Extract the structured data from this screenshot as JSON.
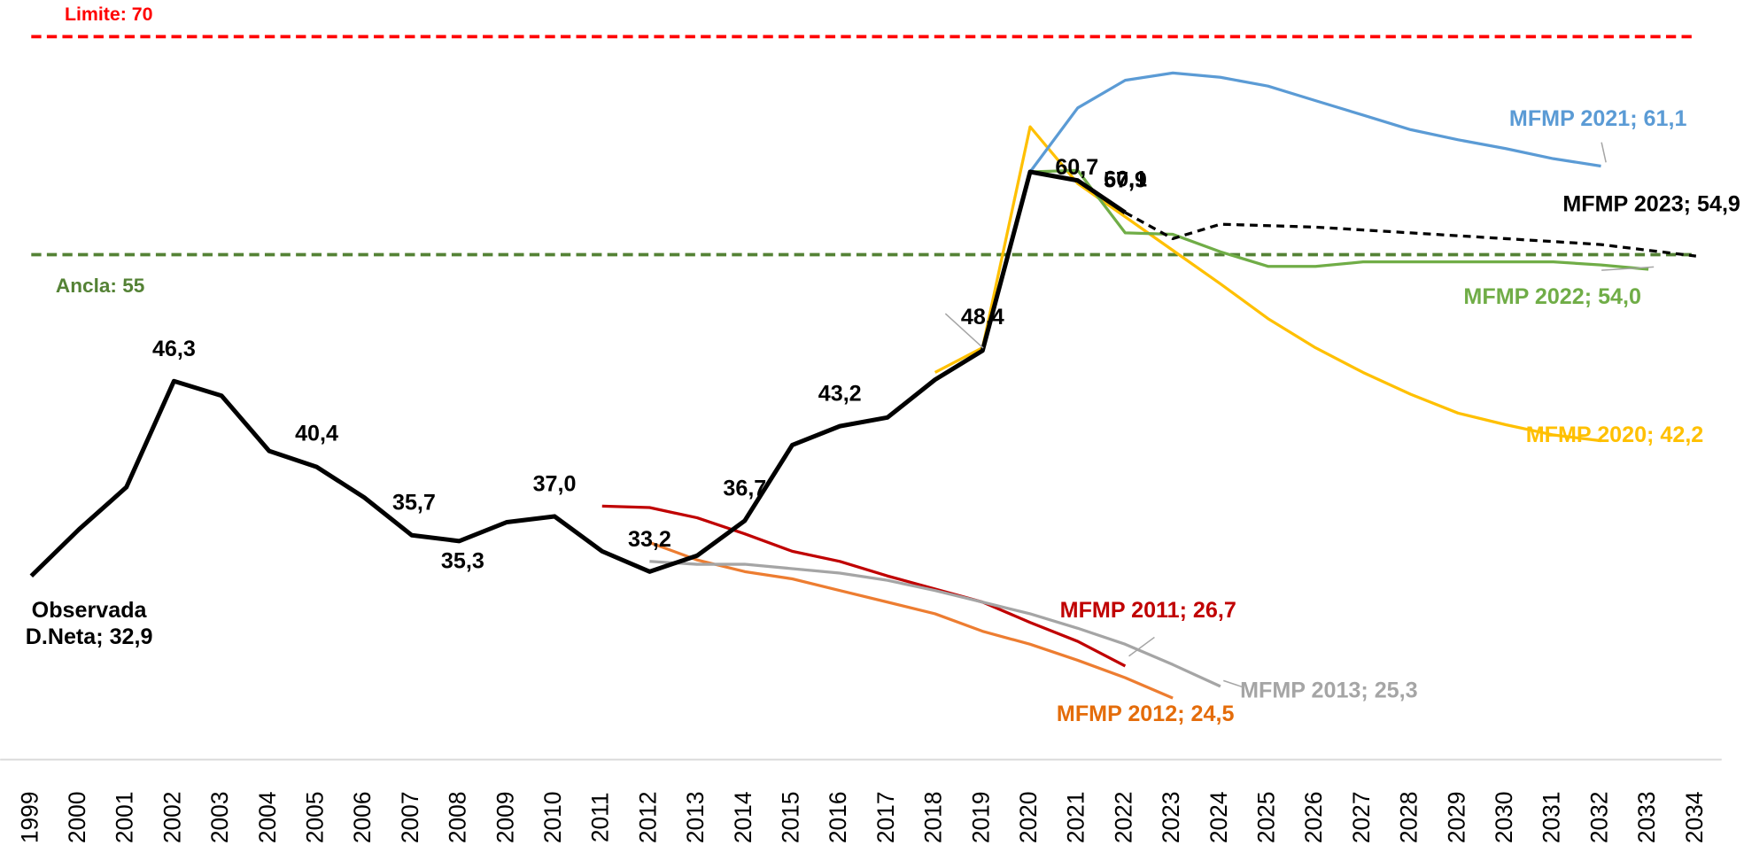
{
  "chart_data": {
    "type": "line",
    "categories": [
      "1999",
      "2000",
      "2001",
      "2002",
      "2003",
      "2004",
      "2005",
      "2006",
      "2007",
      "2008",
      "2009",
      "2010",
      "2011",
      "2012",
      "2013",
      "2014",
      "2015",
      "2016",
      "2017",
      "2018",
      "2019",
      "2020",
      "2021",
      "2022",
      "2023",
      "2024",
      "2025",
      "2026",
      "2027",
      "2028",
      "2029",
      "2030",
      "2031",
      "2032",
      "2033",
      "2034"
    ],
    "ylim": [
      20,
      72
    ],
    "reference_lines": [
      {
        "label": "Limite: 70",
        "value": 70,
        "color": "#ff0000"
      },
      {
        "label": "Ancla: 55",
        "value": 55,
        "color": "#548235"
      }
    ],
    "series": [
      {
        "name": "Observada D.Neta; 32,9",
        "color": "#000000",
        "values": [
          32.9,
          36.1,
          39.0,
          46.3,
          45.3,
          41.5,
          40.4,
          38.3,
          35.7,
          35.3,
          36.6,
          37.0,
          34.6,
          33.2,
          34.3,
          36.7,
          41.9,
          43.2,
          43.8,
          46.4,
          48.4,
          60.7,
          60.1,
          57.9,
          null,
          null,
          null,
          null,
          null,
          null,
          null,
          null,
          null,
          null,
          null,
          null
        ],
        "value_labels": [
          null,
          null,
          null,
          "46,3",
          null,
          null,
          "40,4",
          null,
          "35,7",
          "35,3",
          null,
          "37,0",
          null,
          "33,2",
          null,
          "36,7",
          null,
          "43,2",
          null,
          null,
          "48,4",
          "60,7",
          "60,1",
          "57,9",
          null,
          null,
          null,
          null,
          null,
          null,
          null,
          null,
          null,
          null,
          null,
          null
        ]
      },
      {
        "name": "MFMP 2011; 26,7",
        "color": "#c00000",
        "values": [
          null,
          null,
          null,
          null,
          null,
          null,
          null,
          null,
          null,
          null,
          null,
          null,
          37.7,
          37.6,
          36.9,
          35.8,
          34.6,
          33.9,
          32.9,
          32.0,
          31.1,
          29.7,
          28.4,
          26.7,
          null,
          null,
          null,
          null,
          null,
          null,
          null,
          null,
          null,
          null,
          null,
          null
        ]
      },
      {
        "name": "MFMP 2012; 24,5",
        "color": "#ed7d31",
        "values": [
          null,
          null,
          null,
          null,
          null,
          null,
          null,
          null,
          null,
          null,
          null,
          null,
          null,
          35.2,
          34.0,
          33.2,
          32.7,
          31.9,
          31.1,
          30.3,
          29.1,
          28.2,
          27.1,
          25.9,
          24.5,
          null,
          null,
          null,
          null,
          null,
          null,
          null,
          null,
          null,
          null,
          null
        ]
      },
      {
        "name": "MFMP 2013; 25,3",
        "color": "#a5a5a5",
        "values": [
          null,
          null,
          null,
          null,
          null,
          null,
          null,
          null,
          null,
          null,
          null,
          null,
          null,
          33.9,
          33.7,
          33.7,
          33.4,
          33.1,
          32.6,
          31.9,
          31.1,
          30.3,
          29.3,
          28.2,
          26.8,
          25.3,
          null,
          null,
          null,
          null,
          null,
          null,
          null,
          null,
          null,
          null
        ]
      },
      {
        "name": "MFMP 2020; 42,2",
        "color": "#ffc000",
        "values": [
          null,
          null,
          null,
          null,
          null,
          null,
          null,
          null,
          null,
          null,
          null,
          null,
          null,
          null,
          null,
          null,
          null,
          null,
          null,
          46.9,
          48.6,
          63.8,
          59.9,
          57.6,
          55.3,
          53.0,
          50.6,
          48.6,
          46.9,
          45.4,
          44.1,
          43.3,
          42.6,
          42.2,
          null,
          null
        ]
      },
      {
        "name": "MFMP 2021; 61,1",
        "color": "#5b9bd5",
        "values": [
          null,
          null,
          null,
          null,
          null,
          null,
          null,
          null,
          null,
          null,
          null,
          null,
          null,
          null,
          null,
          null,
          null,
          null,
          null,
          null,
          null,
          60.7,
          65.1,
          67.0,
          67.5,
          67.2,
          66.6,
          65.6,
          64.6,
          63.6,
          62.9,
          62.3,
          61.6,
          61.1,
          null,
          null
        ]
      },
      {
        "name": "MFMP 2022; 54,0",
        "color": "#70ad47",
        "values": [
          null,
          null,
          null,
          null,
          null,
          null,
          null,
          null,
          null,
          null,
          null,
          null,
          null,
          null,
          null,
          null,
          null,
          null,
          null,
          null,
          null,
          60.7,
          60.8,
          56.5,
          56.4,
          55.2,
          54.2,
          54.2,
          54.5,
          54.5,
          54.5,
          54.5,
          54.5,
          54.3,
          54.0,
          null
        ]
      },
      {
        "name": "MFMP 2023; 54,9",
        "color": "#000000",
        "dashed": true,
        "values": [
          null,
          null,
          null,
          null,
          null,
          null,
          null,
          null,
          null,
          null,
          null,
          null,
          null,
          null,
          null,
          null,
          null,
          null,
          null,
          null,
          null,
          null,
          null,
          57.9,
          56.1,
          57.1,
          57.0,
          56.9,
          56.7,
          56.5,
          56.3,
          56.1,
          55.9,
          55.7,
          55.3,
          54.9
        ]
      }
    ]
  }
}
